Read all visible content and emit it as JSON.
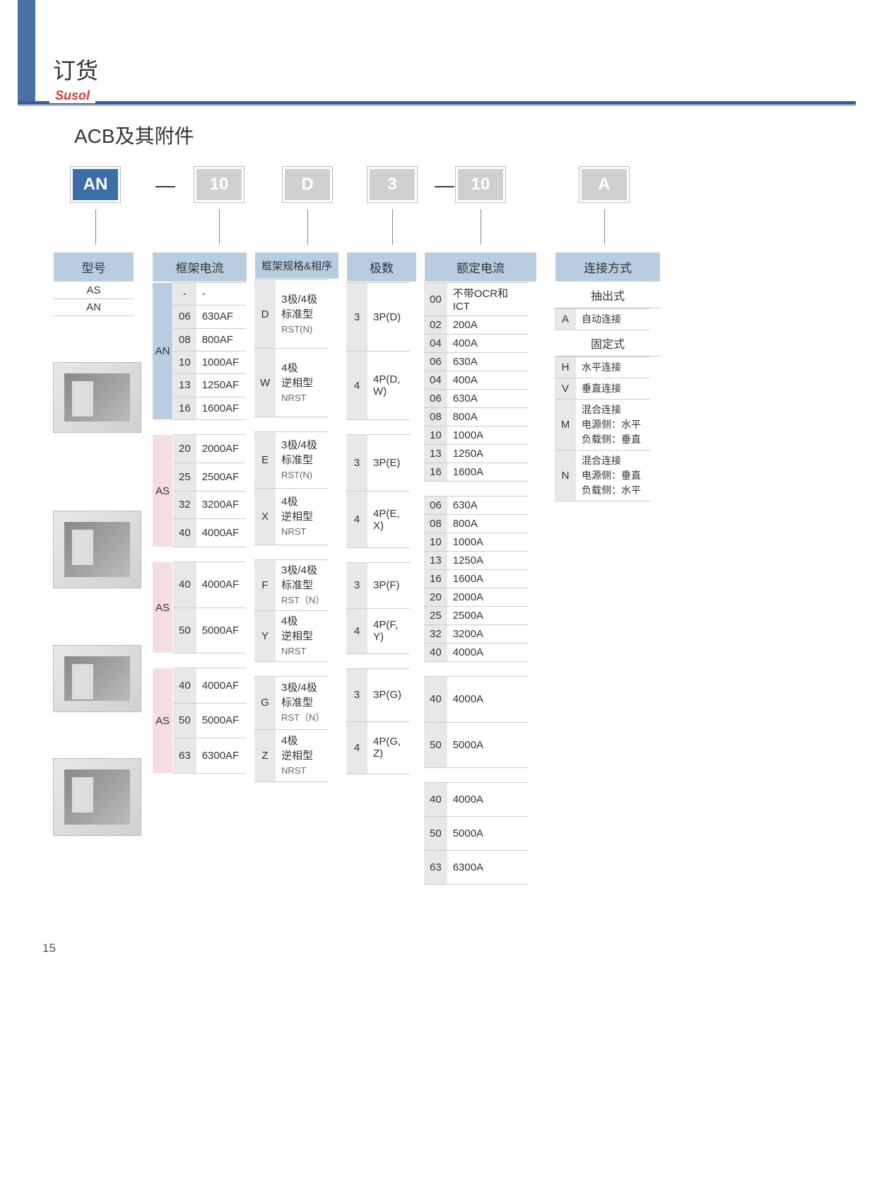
{
  "page_title": "订货",
  "brand": "Susol",
  "sub_title": "ACB及其附件",
  "page_number": "15",
  "code_boxes": {
    "b1": "AN",
    "dash1": "—",
    "b2": "10",
    "b3": "D",
    "b4": "3",
    "dash2": "—",
    "b5": "10",
    "b6": "A"
  },
  "headers": {
    "model": "型号",
    "frame_current": "框架电流",
    "frame_spec": "框架规格&相序",
    "poles": "极数",
    "rated_current": "额定电流",
    "connection": "连接方式"
  },
  "models": [
    "AS",
    "AN"
  ],
  "frame_groups": [
    {
      "tag": "AN",
      "tag_color": "blue",
      "rows": [
        [
          "-",
          "-"
        ],
        [
          "06",
          "630AF"
        ],
        [
          "08",
          "800AF"
        ],
        [
          "10",
          "1000AF"
        ],
        [
          "13",
          "1250AF"
        ],
        [
          "16",
          "1600AF"
        ]
      ]
    },
    {
      "tag": "AS",
      "tag_color": "pink",
      "rows": [
        [
          "20",
          "2000AF"
        ],
        [
          "25",
          "2500AF"
        ],
        [
          "32",
          "3200AF"
        ],
        [
          "40",
          "4000AF"
        ]
      ]
    },
    {
      "tag": "AS",
      "tag_color": "pink",
      "rows": [
        [
          "40",
          "4000AF"
        ],
        [
          "50",
          "5000AF"
        ]
      ]
    },
    {
      "tag": "AS",
      "tag_color": "pink",
      "rows": [
        [
          "40",
          "4000AF"
        ],
        [
          "50",
          "5000AF"
        ],
        [
          "63",
          "6300AF"
        ]
      ]
    }
  ],
  "frame_spec_groups": [
    [
      {
        "code": "D",
        "l1": "3极/4极",
        "l2": "标准型",
        "l3": "RST(N)"
      },
      {
        "code": "W",
        "l1": "4极",
        "l2": "逆相型",
        "l3": "NRST"
      }
    ],
    [
      {
        "code": "E",
        "l1": "3极/4极",
        "l2": "标准型",
        "l3": "RST(N)"
      },
      {
        "code": "X",
        "l1": "4极",
        "l2": "逆相型",
        "l3": "NRST"
      }
    ],
    [
      {
        "code": "F",
        "l1": "3极/4极",
        "l2": "标准型",
        "l3": "RST（N）"
      },
      {
        "code": "Y",
        "l1": "4极",
        "l2": "逆相型",
        "l3": "NRST"
      }
    ],
    [
      {
        "code": "G",
        "l1": "3极/4极",
        "l2": "标准型",
        "l3": "RST（N）"
      },
      {
        "code": "Z",
        "l1": "4极",
        "l2": "逆相型",
        "l3": "NRST"
      }
    ]
  ],
  "poles_groups": [
    [
      {
        "code": "3",
        "val": "3P(D)"
      },
      {
        "code": "4",
        "val": "4P(D, W)"
      }
    ],
    [
      {
        "code": "3",
        "val": "3P(E)"
      },
      {
        "code": "4",
        "val": "4P(E, X)"
      }
    ],
    [
      {
        "code": "3",
        "val": "3P(F)"
      },
      {
        "code": "4",
        "val": "4P(F, Y)"
      }
    ],
    [
      {
        "code": "3",
        "val": "3P(G)"
      },
      {
        "code": "4",
        "val": "4P(G, Z)"
      }
    ]
  ],
  "rated_groups": [
    [
      [
        "00",
        "不带OCR和ICT"
      ],
      [
        "02",
        "200A"
      ],
      [
        "04",
        "400A"
      ],
      [
        "06",
        "630A"
      ],
      [
        "04",
        "400A"
      ],
      [
        "06",
        "630A"
      ],
      [
        "08",
        "800A"
      ],
      [
        "10",
        "1000A"
      ],
      [
        "13",
        "1250A"
      ],
      [
        "16",
        "1600A"
      ]
    ],
    [
      [
        "06",
        "630A"
      ],
      [
        "08",
        "800A"
      ],
      [
        "10",
        "1000A"
      ],
      [
        "13",
        "1250A"
      ],
      [
        "16",
        "1600A"
      ],
      [
        "20",
        "2000A"
      ],
      [
        "25",
        "2500A"
      ],
      [
        "32",
        "3200A"
      ],
      [
        "40",
        "4000A"
      ]
    ],
    [
      [
        "40",
        "4000A"
      ],
      [
        "50",
        "5000A"
      ]
    ],
    [
      [
        "40",
        "4000A"
      ],
      [
        "50",
        "5000A"
      ],
      [
        "63",
        "6300A"
      ]
    ]
  ],
  "connection": {
    "sec1_title": "抽出式",
    "sec1_rows": [
      [
        "A",
        "自动连接"
      ]
    ],
    "sec2_title": "固定式",
    "sec2_rows": [
      [
        "H",
        "水平连接"
      ],
      [
        "V",
        "垂直连接"
      ],
      [
        "M",
        "混合连接\n电源侧：水平\n负载侧：垂直"
      ],
      [
        "N",
        "混合连接\n电源侧：垂直\n负载侧：水平"
      ]
    ]
  },
  "colors": {
    "blue_box": "#3b6fa5",
    "gray_box": "#d0d0d0",
    "header_bg": "#b8cde0",
    "pink_bg": "#f5dde0",
    "code_bg": "#e8e8e8"
  }
}
